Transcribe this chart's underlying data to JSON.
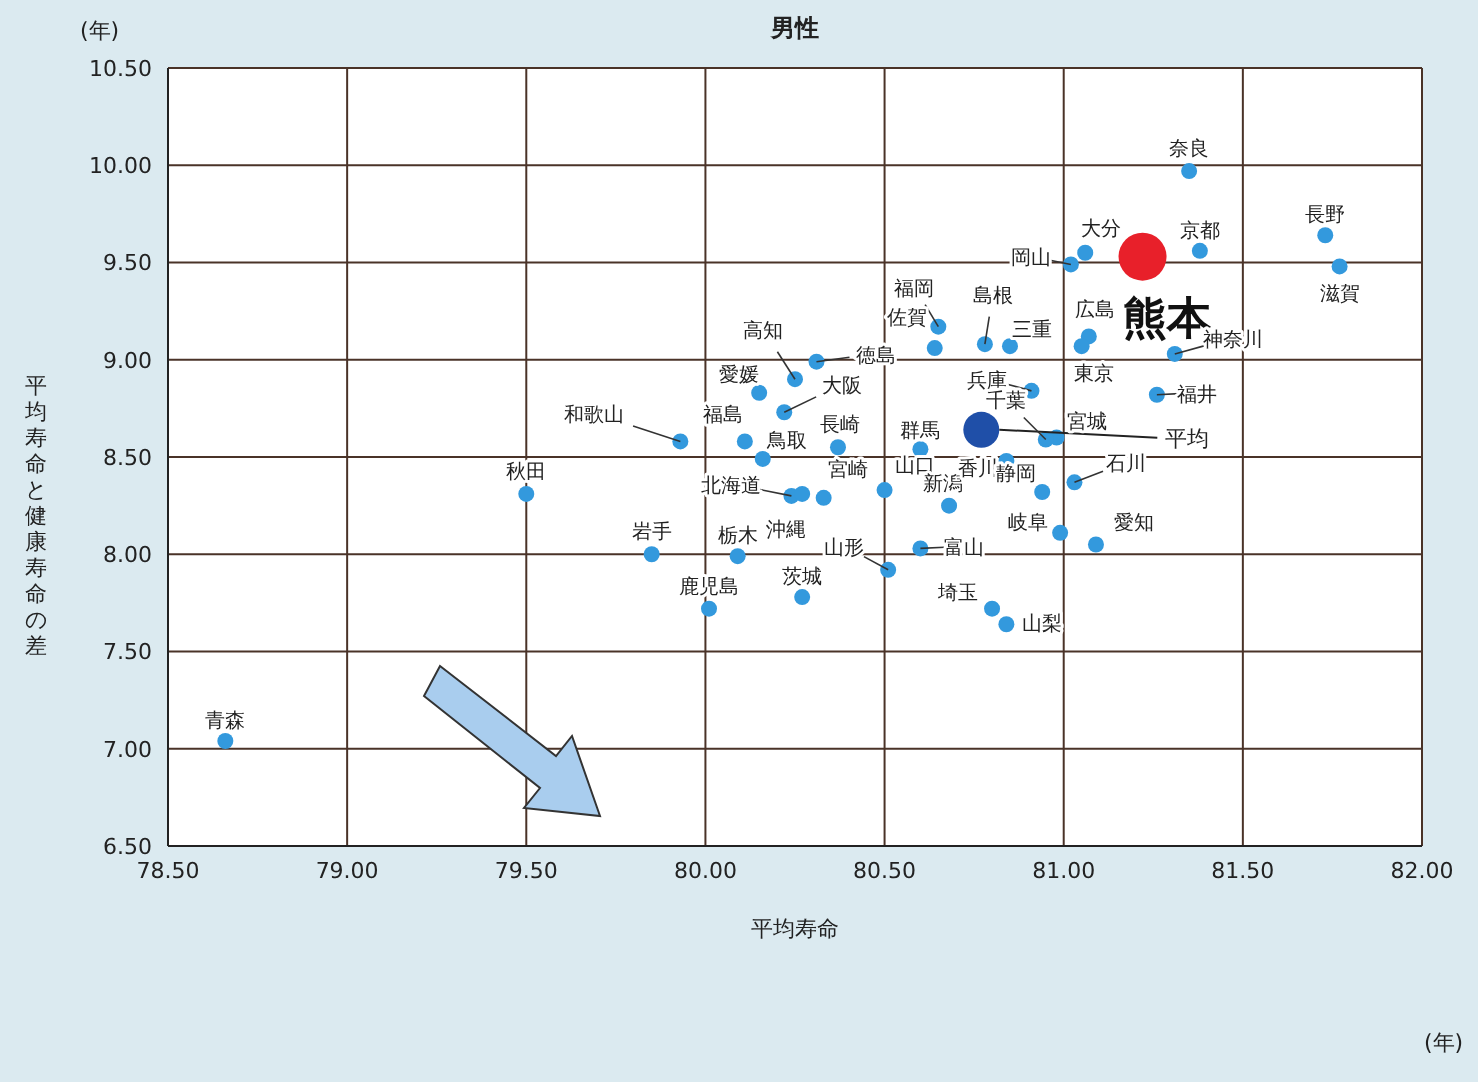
{
  "chart_data": {
    "type": "scatter",
    "title": "男性",
    "xlabel": "平均寿命",
    "ylabel": "平均寿命と健康寿命の差",
    "xlim": [
      78.5,
      82
    ],
    "ylim": [
      6.5,
      10.5
    ],
    "xticks": [
      {
        "value": 78.5,
        "label": "78.50"
      },
      {
        "value": 79,
        "label": "79.00"
      },
      {
        "value": 79.5,
        "label": "79.50"
      },
      {
        "value": 80,
        "label": "80.00"
      },
      {
        "value": 80.5,
        "label": "80.50"
      },
      {
        "value": 81,
        "label": "81.00"
      },
      {
        "value": 81.5,
        "label": "81.50"
      },
      {
        "value": 82,
        "label": "82.00"
      }
    ],
    "yticks": [
      {
        "value": 6.5,
        "label": "6.50"
      },
      {
        "value": 7,
        "label": "7.00"
      },
      {
        "value": 7.5,
        "label": "7.50"
      },
      {
        "value": 8,
        "label": "8.00"
      },
      {
        "value": 8.5,
        "label": "8.50"
      },
      {
        "value": 9,
        "label": "9.00"
      },
      {
        "value": 9.5,
        "label": "9.50"
      },
      {
        "value": 10,
        "label": "10.00"
      },
      {
        "value": 10.5,
        "label": "10.50"
      }
    ],
    "grid": true,
    "marker": "circle",
    "series": [
      {
        "type": "scatter",
        "color": "#3399dd",
        "x": [
          78.66,
          79.5,
          79.85,
          80.01,
          80.09,
          80.27,
          79.93,
          80.11,
          80.16,
          80.15,
          80.25,
          80.31,
          80.22,
          80.37,
          80.24,
          80.27,
          80.33,
          80.5,
          80.6,
          80.68,
          80.6,
          80.51,
          80.65,
          80.64,
          80.78,
          80.85,
          80.91,
          81.07,
          81.05,
          81.31,
          81.26,
          80.98,
          80.95,
          80.84,
          80.94,
          81.03,
          80.99,
          81.09,
          80.8,
          80.84,
          81.35,
          81.38,
          81.06,
          81.02,
          81.73,
          81.77
        ],
        "values": [
          7.04,
          8.31,
          8.0,
          7.72,
          7.99,
          7.78,
          8.58,
          8.58,
          8.49,
          8.83,
          8.9,
          8.99,
          8.73,
          8.55,
          8.3,
          8.31,
          8.29,
          8.33,
          8.54,
          8.25,
          8.03,
          7.92,
          9.17,
          9.06,
          9.08,
          9.07,
          8.84,
          9.12,
          9.07,
          9.03,
          8.82,
          8.6,
          8.59,
          8.48,
          8.32,
          8.37,
          8.11,
          8.05,
          7.72,
          7.64,
          9.97,
          9.56,
          9.55,
          9.49,
          9.64,
          9.48
        ]
      },
      {
        "type": "scatter",
        "name": "熊本",
        "color": "#e8202a",
        "x": [
          81.22
        ],
        "values": [
          9.53
        ]
      },
      {
        "type": "scatter",
        "name": "平均",
        "color": "#1f4fa8",
        "x": [
          80.77
        ],
        "values": [
          8.64
        ]
      }
    ],
    "annotations": [
      "(年)",
      "(年)",
      {
        "text": "青森",
        "x": 78.66,
        "y": 7.04
      },
      {
        "text": "秋田",
        "x": 79.5,
        "y": 8.31
      },
      {
        "text": "岩手",
        "x": 79.85,
        "y": 8.0
      },
      {
        "text": "鹿児島",
        "x": 80.01,
        "y": 7.72
      },
      {
        "text": "栃木",
        "x": 80.09,
        "y": 7.99
      },
      {
        "text": "茨城",
        "x": 80.27,
        "y": 7.78
      },
      {
        "text": "和歌山",
        "x": 79.93,
        "y": 8.58
      },
      {
        "text": "福島",
        "x": 80.11,
        "y": 8.58
      },
      {
        "text": "鳥取",
        "x": 80.16,
        "y": 8.49
      },
      {
        "text": "愛媛",
        "x": 80.15,
        "y": 8.83
      },
      {
        "text": "高知",
        "x": 80.25,
        "y": 8.9
      },
      {
        "text": "徳島",
        "x": 80.31,
        "y": 8.99
      },
      {
        "text": "大阪",
        "x": 80.22,
        "y": 8.73
      },
      {
        "text": "長崎",
        "x": 80.37,
        "y": 8.55
      },
      {
        "text": "北海道",
        "x": 80.24,
        "y": 8.3
      },
      {
        "text": "沖縄",
        "x": 80.27,
        "y": 8.31
      },
      {
        "text": "宮崎",
        "x": 80.33,
        "y": 8.29
      },
      {
        "text": "山口",
        "x": 80.5,
        "y": 8.33
      },
      {
        "text": "群馬",
        "x": 80.6,
        "y": 8.54
      },
      {
        "text": "新潟",
        "x": 80.68,
        "y": 8.25
      },
      {
        "text": "富山",
        "x": 80.6,
        "y": 8.03
      },
      {
        "text": "山形",
        "x": 80.51,
        "y": 7.92
      },
      {
        "text": "福岡",
        "x": 80.65,
        "y": 9.17
      },
      {
        "text": "佐賀",
        "x": 80.64,
        "y": 9.06
      },
      {
        "text": "島根",
        "x": 80.78,
        "y": 9.08
      },
      {
        "text": "三重",
        "x": 80.85,
        "y": 9.07
      },
      {
        "text": "兵庫",
        "x": 80.91,
        "y": 8.84
      },
      {
        "text": "広島",
        "x": 81.07,
        "y": 9.12
      },
      {
        "text": "東京",
        "x": 81.05,
        "y": 9.07
      },
      {
        "text": "神奈川",
        "x": 81.31,
        "y": 9.03
      },
      {
        "text": "福井",
        "x": 81.26,
        "y": 8.82
      },
      {
        "text": "宮城",
        "x": 80.98,
        "y": 8.6
      },
      {
        "text": "千葉",
        "x": 80.95,
        "y": 8.59
      },
      {
        "text": "香川",
        "x": 80.84,
        "y": 8.48
      },
      {
        "text": "静岡",
        "x": 80.94,
        "y": 8.32
      },
      {
        "text": "石川",
        "x": 81.03,
        "y": 8.37
      },
      {
        "text": "岐阜",
        "x": 80.99,
        "y": 8.11
      },
      {
        "text": "愛知",
        "x": 81.09,
        "y": 8.05
      },
      {
        "text": "埼玉",
        "x": 80.8,
        "y": 7.72
      },
      {
        "text": "山梨",
        "x": 80.84,
        "y": 7.64
      },
      {
        "text": "奈良",
        "x": 81.35,
        "y": 9.97
      },
      {
        "text": "京都",
        "x": 81.38,
        "y": 9.56
      },
      {
        "text": "大分",
        "x": 81.06,
        "y": 9.55
      },
      {
        "text": "岡山",
        "x": 81.02,
        "y": 9.49
      },
      {
        "text": "長野",
        "x": 81.73,
        "y": 9.64
      },
      {
        "text": "滋賀",
        "x": 81.77,
        "y": 9.48
      }
    ]
  }
}
